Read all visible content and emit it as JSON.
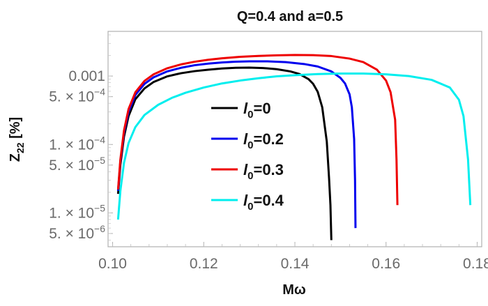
{
  "chart_data": {
    "type": "line",
    "title": "Q=0.4 and a=0.5",
    "xlabel": "Mω",
    "ylabel_main": "Z",
    "ylabel_sub": "22",
    "ylabel_suffix": " [%]",
    "xlim": [
      0.099,
      0.181
    ],
    "ylim": [
      3.2e-06,
      0.0045
    ],
    "yscale": "log",
    "grid": false,
    "legend_position": "center",
    "x_ticks": [
      {
        "value": 0.1,
        "label": "0.10"
      },
      {
        "value": 0.12,
        "label": "0.12"
      },
      {
        "value": 0.14,
        "label": "0.14"
      },
      {
        "value": 0.16,
        "label": "0.16"
      },
      {
        "value": 0.18,
        "label": "0.18"
      }
    ],
    "y_ticks": [
      {
        "value": 0.001,
        "mantissa": "0.001",
        "exp": ""
      },
      {
        "value": 0.0005,
        "mantissa": "5. × 10",
        "exp": "−4"
      },
      {
        "value": 0.0001,
        "mantissa": "1. × 10",
        "exp": "−4"
      },
      {
        "value": 5e-05,
        "mantissa": "5. × 10",
        "exp": "−5"
      },
      {
        "value": 1e-05,
        "mantissa": "1. × 10",
        "exp": "−5"
      },
      {
        "value": 5e-06,
        "mantissa": "5. × 10",
        "exp": "−6"
      }
    ],
    "series": [
      {
        "name": "l0=0",
        "legend_symbol": "l",
        "legend_sub": "0",
        "legend_value": "=0",
        "color": "#000000",
        "x": [
          0.1012,
          0.1017,
          0.1025,
          0.1035,
          0.105,
          0.107,
          0.109,
          0.112,
          0.115,
          0.118,
          0.121,
          0.124,
          0.127,
          0.13,
          0.133,
          0.136,
          0.139,
          0.141,
          0.143,
          0.144,
          0.145,
          0.146,
          0.147,
          0.1475,
          0.1478,
          0.148
        ],
        "y": [
          1.9e-05,
          5e-05,
          0.00013,
          0.00026,
          0.00046,
          0.00066,
          0.00082,
          0.00099,
          0.0011,
          0.00118,
          0.00124,
          0.00129,
          0.00132,
          0.00133,
          0.00131,
          0.00126,
          0.00117,
          0.00107,
          0.0009,
          0.00077,
          0.00059,
          0.00035,
          0.00011,
          3.2e-05,
          1.3e-05,
          4e-06
        ]
      },
      {
        "name": "l0=0.2",
        "legend_symbol": "l",
        "legend_sub": "0",
        "legend_value": "=0.2",
        "color": "#0000ee",
        "x": [
          0.1012,
          0.1017,
          0.1025,
          0.1035,
          0.105,
          0.107,
          0.109,
          0.112,
          0.115,
          0.118,
          0.121,
          0.124,
          0.127,
          0.13,
          0.134,
          0.138,
          0.142,
          0.145,
          0.148,
          0.15,
          0.151,
          0.152,
          0.1525,
          0.153,
          0.1532,
          0.1533
        ],
        "y": [
          2.1e-05,
          5.6e-05,
          0.00015,
          0.0003,
          0.00053,
          0.00077,
          0.00096,
          0.00117,
          0.00132,
          0.00144,
          0.00152,
          0.00158,
          0.00162,
          0.00164,
          0.00164,
          0.0016,
          0.0015,
          0.00138,
          0.00117,
          0.00094,
          0.00078,
          0.00054,
          0.00035,
          0.00012,
          3e-05,
          6e-06
        ]
      },
      {
        "name": "l0=0.3",
        "legend_symbol": "l",
        "legend_sub": "0",
        "legend_value": "=0.3",
        "color": "#ee0000",
        "x": [
          0.1012,
          0.1017,
          0.1025,
          0.1035,
          0.105,
          0.107,
          0.109,
          0.112,
          0.115,
          0.118,
          0.121,
          0.124,
          0.128,
          0.132,
          0.136,
          0.14,
          0.144,
          0.148,
          0.152,
          0.155,
          0.158,
          0.16,
          0.161,
          0.162,
          0.1623,
          0.1625
        ],
        "y": [
          2.2e-05,
          6e-05,
          0.00016,
          0.00033,
          0.00058,
          0.00085,
          0.00106,
          0.0013,
          0.00148,
          0.00162,
          0.00173,
          0.00182,
          0.00191,
          0.00197,
          0.00201,
          0.00203,
          0.00202,
          0.00196,
          0.0018,
          0.0016,
          0.00124,
          0.00086,
          0.00058,
          0.00023,
          6e-05,
          1.3e-05
        ]
      },
      {
        "name": "l0=0.4",
        "legend_symbol": "l",
        "legend_sub": "0",
        "legend_value": "=0.4",
        "color": "#00eeee",
        "x": [
          0.1012,
          0.1017,
          0.1025,
          0.1035,
          0.105,
          0.107,
          0.11,
          0.113,
          0.116,
          0.12,
          0.124,
          0.128,
          0.132,
          0.136,
          0.14,
          0.145,
          0.15,
          0.155,
          0.16,
          0.165,
          0.17,
          0.174,
          0.176,
          0.177,
          0.178,
          0.1785
        ],
        "y": [
          8e-06,
          2.1e-05,
          5.4e-05,
          0.000105,
          0.00018,
          0.00027,
          0.00038,
          0.00048,
          0.00057,
          0.00068,
          0.00078,
          0.00086,
          0.00093,
          0.00099,
          0.00103,
          0.00107,
          0.00109,
          0.00109,
          0.00106,
          0.001,
          0.00088,
          0.00068,
          0.00045,
          0.00026,
          6e-05,
          1.3e-05
        ]
      }
    ]
  }
}
